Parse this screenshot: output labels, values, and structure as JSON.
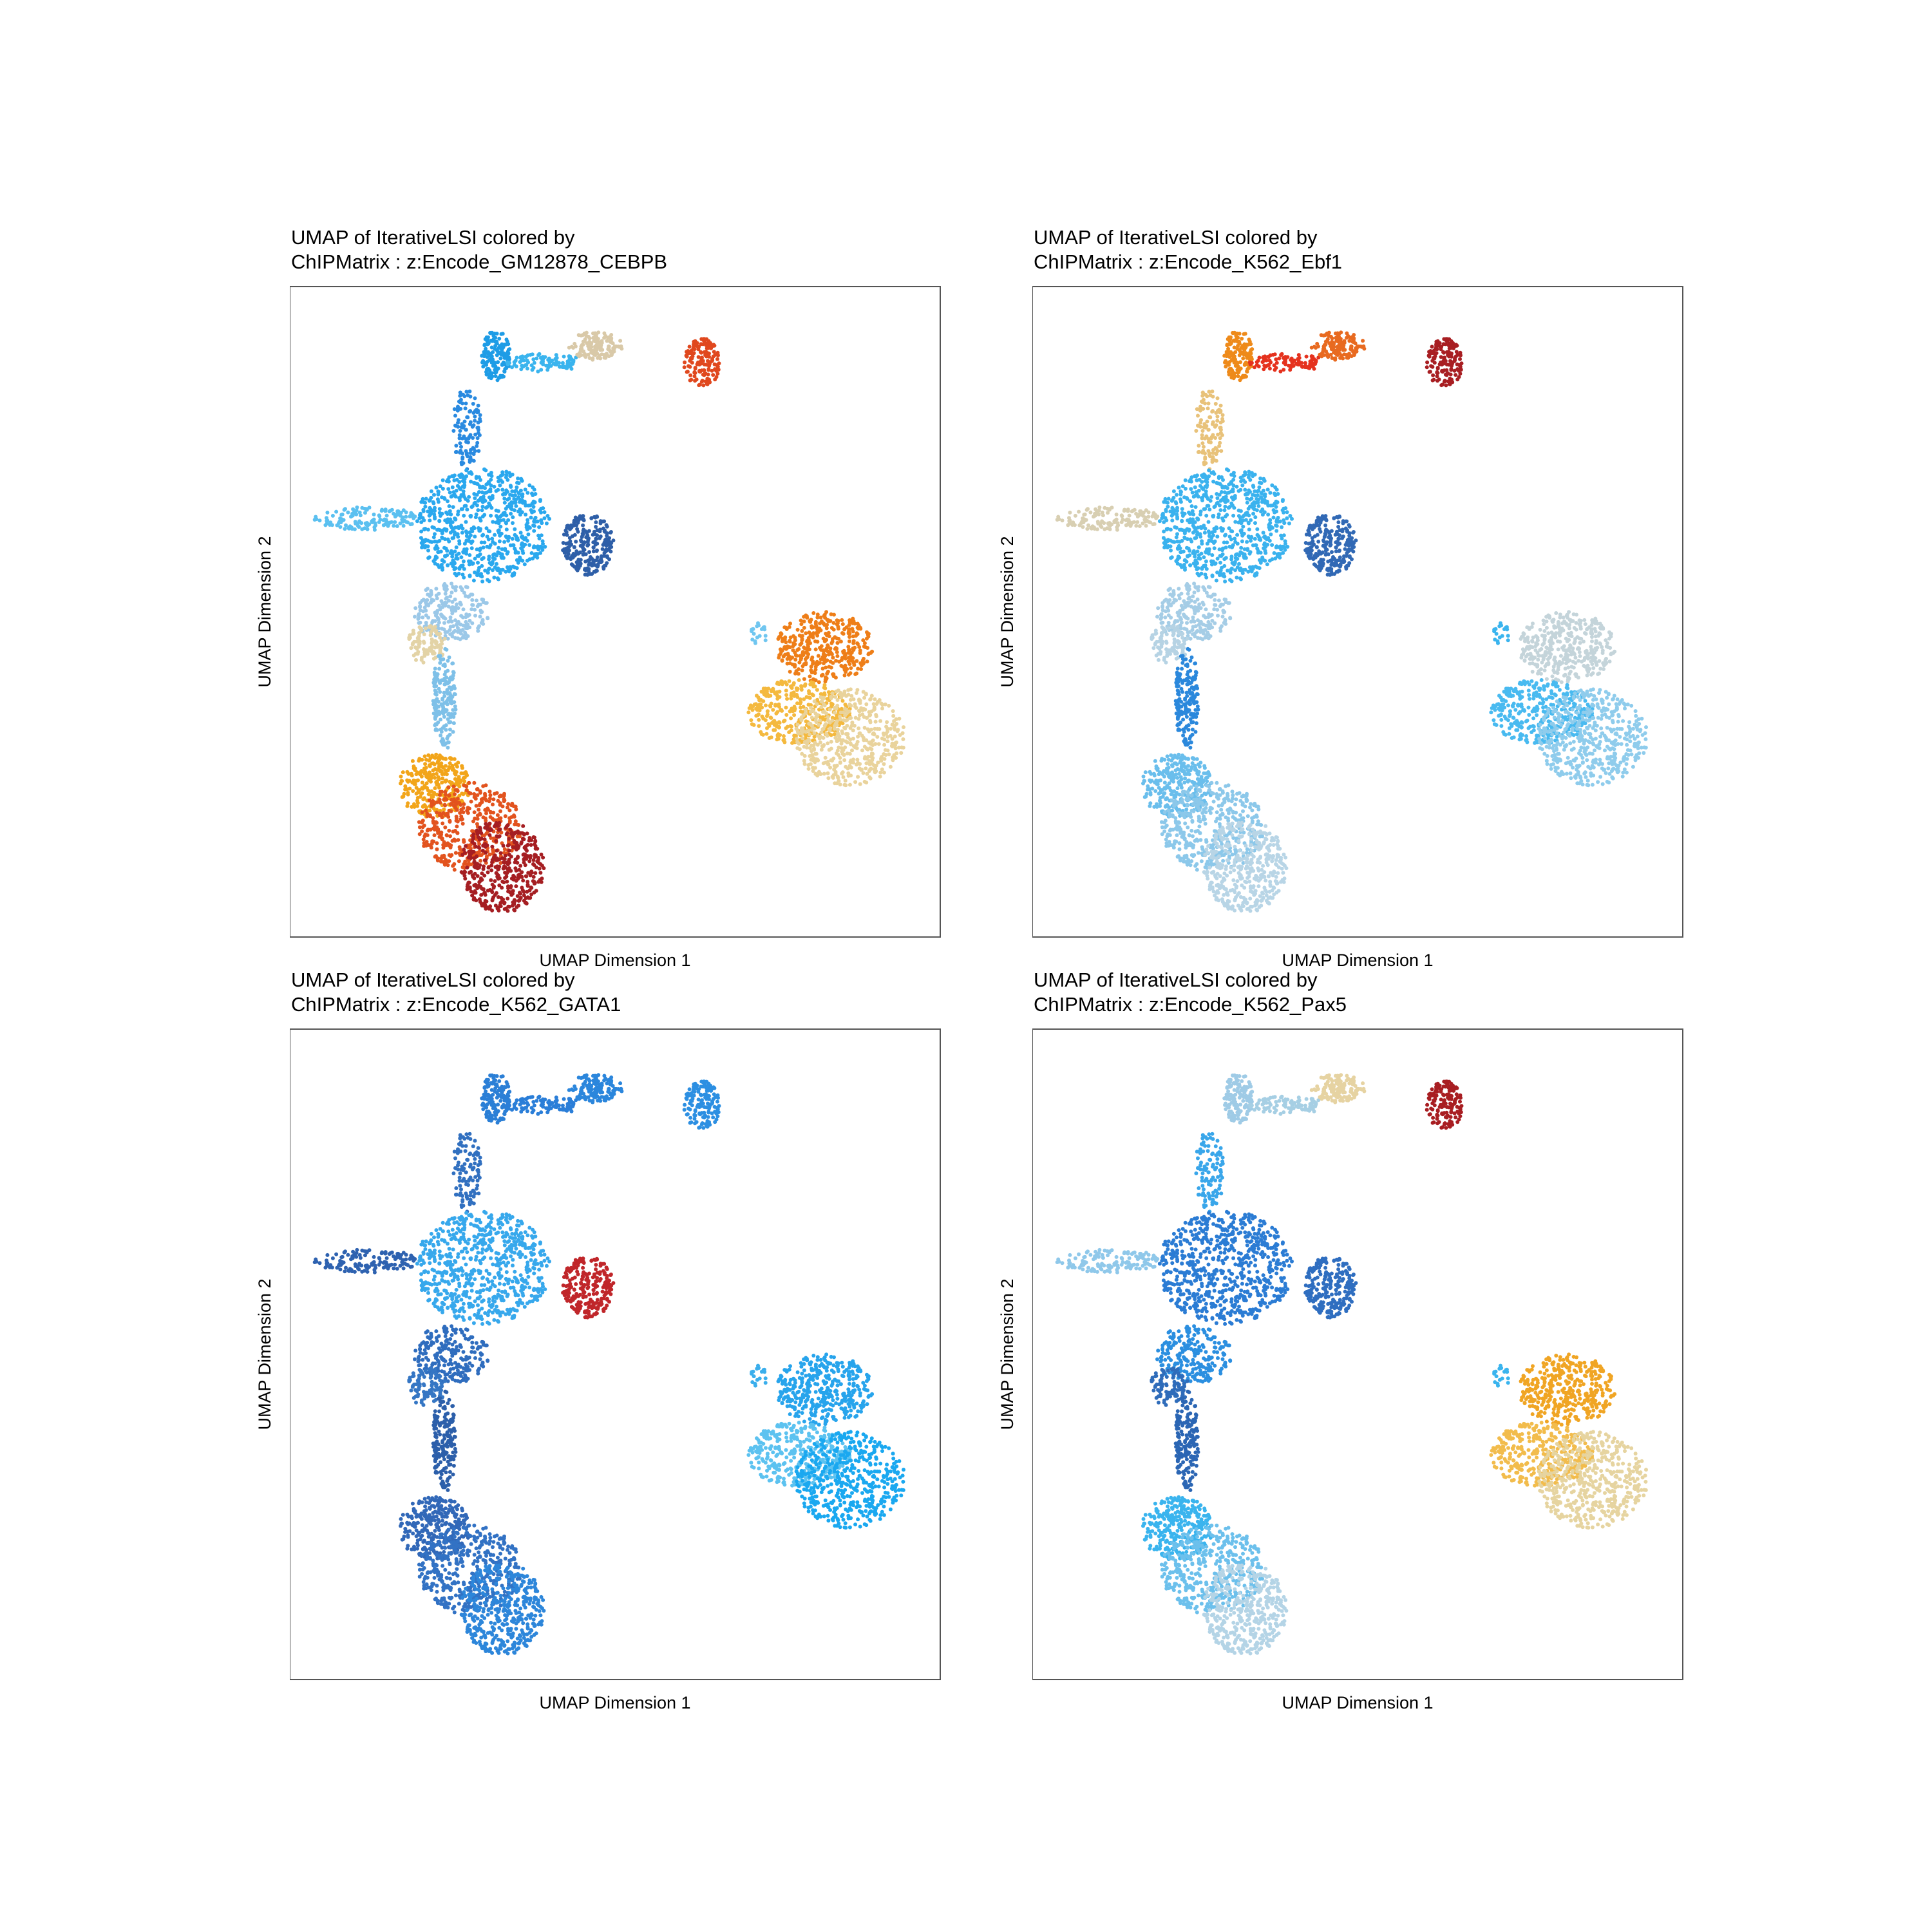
{
  "chart_data": [
    {
      "type": "scatter",
      "title": "UMAP of IterativeLSI colored by",
      "subtitle": "ChIPMatrix : z:Encode_GM12878_CEBPB",
      "xlabel": "UMAP Dimension 1",
      "ylabel": "UMAP Dimension 2",
      "grid": false,
      "legend": "none",
      "cluster_colors": {
        "top_arm_left": "#1E9CE6",
        "top_arm_mid": "#3AB4EE",
        "top_arm_tip": "#D9C9A8",
        "top_right_blob": "#E0481E",
        "stem_upper": "#2A8AE0",
        "left_spur": "#5BC0F0",
        "central_mass": "#2AA8EE",
        "dark_lobe": "#2E5FA8",
        "central_lower": "#9BC8E8",
        "beige_patch": "#E3D3A6",
        "neck": "#7EC0E8",
        "lower_blob_top": "#F2A51A",
        "lower_blob_mid": "#E2531E",
        "lower_blob_bottom": "#A51E22",
        "right_blob_top": "#EE7E18",
        "right_blob_mid": "#F4B93E",
        "right_blob_bottom": "#E9D39C",
        "right_stray": "#70C6F0"
      }
    },
    {
      "type": "scatter",
      "title": "UMAP of IterativeLSI colored by",
      "subtitle": "ChIPMatrix : z:Encode_K562_Ebf1",
      "xlabel": "UMAP Dimension 1",
      "ylabel": "UMAP Dimension 2",
      "grid": false,
      "legend": "none",
      "cluster_colors": {
        "top_arm_left": "#EE8A1A",
        "top_arm_mid": "#E5321E",
        "top_arm_tip": "#E86A20",
        "top_right_blob": "#A81E22",
        "stem_upper": "#E8C27A",
        "left_spur": "#D8CFB2",
        "central_mass": "#3AB2EE",
        "dark_lobe": "#3169B5",
        "central_lower": "#A5CDE6",
        "beige_patch": "#B6D3E4",
        "neck": "#2B88DC",
        "lower_blob_top": "#6ABEEC",
        "lower_blob_mid": "#8CC8EA",
        "lower_blob_bottom": "#B8D5E6",
        "right_blob_top": "#C4D4DA",
        "right_blob_mid": "#49BAF0",
        "right_blob_bottom": "#8FCCEC",
        "right_stray": "#3AB4EE"
      }
    },
    {
      "type": "scatter",
      "title": "UMAP of IterativeLSI colored by",
      "subtitle": "ChIPMatrix : z:Encode_K562_GATA1",
      "xlabel": "UMAP Dimension 1",
      "ylabel": "UMAP Dimension 2",
      "grid": false,
      "legend": "none",
      "cluster_colors": {
        "top_arm_left": "#2B7FD6",
        "top_arm_mid": "#2A7ED8",
        "top_arm_tip": "#2B86DC",
        "top_right_blob": "#2C8FE2",
        "stem_upper": "#3170C0",
        "left_spur": "#2E62B0",
        "central_mass": "#37A8EC",
        "dark_lobe": "#C0262A",
        "central_lower": "#2F6DBE",
        "beige_patch": "#3576C4",
        "neck": "#2C5FAA",
        "lower_blob_top": "#3168B8",
        "lower_blob_mid": "#3272C4",
        "lower_blob_bottom": "#2D86DA",
        "right_blob_top": "#27A4EC",
        "right_blob_mid": "#5CC2F0",
        "right_blob_bottom": "#1AA8F0",
        "right_stray": "#3AAEEC"
      }
    },
    {
      "type": "scatter",
      "title": "UMAP of IterativeLSI colored by",
      "subtitle": "ChIPMatrix : z:Encode_K562_Pax5",
      "xlabel": "UMAP Dimension 1",
      "ylabel": "UMAP Dimension 2",
      "grid": false,
      "legend": "none",
      "cluster_colors": {
        "top_arm_left": "#9FCBE6",
        "top_arm_mid": "#A6CFE4",
        "top_arm_tip": "#E6D3A2",
        "top_right_blob": "#A81E22",
        "stem_upper": "#39A6EA",
        "left_spur": "#8FC8EA",
        "central_mass": "#2B7CD4",
        "dark_lobe": "#2F6EC0",
        "central_lower": "#2B8FE0",
        "beige_patch": "#2F6CBA",
        "neck": "#2B66B4",
        "lower_blob_top": "#3AB4EE",
        "lower_blob_mid": "#6CC0EC",
        "lower_blob_bottom": "#B4D4E6",
        "right_blob_top": "#F0A524",
        "right_blob_mid": "#F2BC4C",
        "right_blob_bottom": "#E6D4A0",
        "right_stray": "#3AB4EE"
      }
    }
  ]
}
